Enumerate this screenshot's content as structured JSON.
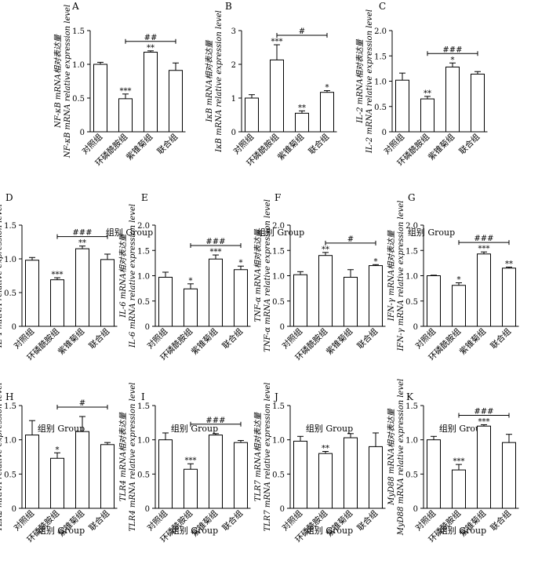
{
  "panels": [
    {
      "letter": "A",
      "ylabel_cn": "NF-κB mRNA相对表达量",
      "ylabel_en": "NF-κB mRNA relative expression level",
      "chart_data": {
        "type": "bar",
        "categories": [
          "对照组",
          "环磷酰胺组",
          "紫锥菊组",
          "联合组"
        ],
        "values": [
          1.0,
          0.49,
          1.18,
          0.91
        ],
        "errors": [
          0.03,
          0.07,
          0.02,
          0.11
        ],
        "ylim": [
          0,
          1.5
        ],
        "yticks": [
          "0",
          "0.5",
          "1.0",
          "1.5"
        ],
        "stars": [
          "",
          "***",
          "**",
          ""
        ],
        "bracket": {
          "from": 1,
          "to": 3,
          "label": "##"
        },
        "xlabel": "组别  Group"
      }
    },
    {
      "letter": "B",
      "ylabel_cn": "IκB mRNA相对表达量",
      "ylabel_en": "IκB mRNA relative expression level",
      "chart_data": {
        "type": "bar",
        "categories": [
          "对照组",
          "环磷酰胺组",
          "紫锥菊组",
          "联合组"
        ],
        "values": [
          1.0,
          2.13,
          0.55,
          1.17
        ],
        "errors": [
          0.1,
          0.45,
          0.07,
          0.05
        ],
        "ylim": [
          0,
          3
        ],
        "yticks": [
          "0",
          "1",
          "2",
          "3"
        ],
        "stars": [
          "",
          "***",
          "**",
          "*"
        ],
        "bracket": {
          "from": 1,
          "to": 3,
          "label": "#"
        },
        "xlabel": "组别  Group"
      }
    },
    {
      "letter": "C",
      "ylabel_cn": "IL-2 mRNA相对表达量",
      "ylabel_en": "IL-2 mRNA relative expression level",
      "chart_data": {
        "type": "bar",
        "categories": [
          "对照组",
          "环磷酰胺组",
          "紫锥菊组",
          "联合组"
        ],
        "values": [
          1.02,
          0.65,
          1.28,
          1.14
        ],
        "errors": [
          0.14,
          0.05,
          0.08,
          0.05
        ],
        "ylim": [
          0,
          2.0
        ],
        "yticks": [
          "0",
          "0.5",
          "1.0",
          "1.5",
          "2.0"
        ],
        "stars": [
          "",
          "**",
          "*",
          ""
        ],
        "bracket": {
          "from": 1,
          "to": 3,
          "label": "###"
        },
        "xlabel": "组别  Group"
      }
    },
    {
      "letter": "D",
      "ylabel_cn": "IL-4 mRNA相对表达量",
      "ylabel_en": "IL-4 mRNA relative expression level",
      "chart_data": {
        "type": "bar",
        "categories": [
          "对照组",
          "环磷酰胺组",
          "紫锥菊组",
          "联合组"
        ],
        "values": [
          0.98,
          0.69,
          1.15,
          0.99
        ],
        "errors": [
          0.04,
          0.03,
          0.04,
          0.08
        ],
        "ylim": [
          0,
          1.5
        ],
        "yticks": [
          "0",
          "0.5",
          "1.0",
          "1.5"
        ],
        "stars": [
          "",
          "***",
          "**",
          ""
        ],
        "bracket": {
          "from": 1,
          "to": 3,
          "label": "###"
        },
        "xlabel": "组别  Group"
      }
    },
    {
      "letter": "E",
      "ylabel_cn": "IL-6 mRNA相对表达量",
      "ylabel_en": "IL-6 mRNA relative expression level",
      "chart_data": {
        "type": "bar",
        "categories": [
          "对照组",
          "环磷酰胺组",
          "紫锥菊组",
          "联合组"
        ],
        "values": [
          0.97,
          0.74,
          1.33,
          1.12
        ],
        "errors": [
          0.1,
          0.1,
          0.08,
          0.07
        ],
        "ylim": [
          0,
          2.0
        ],
        "yticks": [
          "0",
          "0.5",
          "1.0",
          "1.5",
          "2.0"
        ],
        "stars": [
          "",
          "*",
          "***",
          "*"
        ],
        "bracket": {
          "from": 1,
          "to": 3,
          "label": "###"
        },
        "xlabel": "组别  Group"
      }
    },
    {
      "letter": "F",
      "ylabel_cn": "TNF-α mRNA相对表达量",
      "ylabel_en": "TNF-α mRNA relative expression level",
      "chart_data": {
        "type": "bar",
        "categories": [
          "对照组",
          "环磷酰胺组",
          "紫锥菊组",
          "联合组"
        ],
        "values": [
          1.02,
          1.4,
          0.97,
          1.2
        ],
        "errors": [
          0.06,
          0.06,
          0.15,
          0.02
        ],
        "ylim": [
          0,
          2.0
        ],
        "yticks": [
          "0",
          "0.5",
          "1.0",
          "1.5",
          "2.0"
        ],
        "stars": [
          "",
          "**",
          "",
          "*"
        ],
        "bracket": {
          "from": 1,
          "to": 3,
          "label": "#"
        },
        "xlabel": "组别  Group"
      }
    },
    {
      "letter": "G",
      "ylabel_cn": "IFN-γ mRNA相对表达量",
      "ylabel_en": "IFN-γ mRNA relative expression level",
      "chart_data": {
        "type": "bar",
        "categories": [
          "对照组",
          "环磷酰胺组",
          "紫锥菊组",
          "联合组"
        ],
        "values": [
          1.0,
          0.81,
          1.43,
          1.15
        ],
        "errors": [
          0.01,
          0.05,
          0.04,
          0.02
        ],
        "ylim": [
          0,
          2.0
        ],
        "yticks": [
          "0",
          "0.5",
          "1.0",
          "1.5",
          "2.0"
        ],
        "stars": [
          "",
          "*",
          "***",
          "**"
        ],
        "bracket": {
          "from": 1,
          "to": 3,
          "label": "###"
        },
        "xlabel": "组别  Group"
      }
    },
    {
      "letter": "H",
      "ylabel_cn": "TLR2 mRNA相对表达量",
      "ylabel_en": "TLR2 mRNA relative expression level",
      "chart_data": {
        "type": "bar",
        "categories": [
          "对照组",
          "环磷酰胺组",
          "紫锥菊组",
          "联合组"
        ],
        "values": [
          1.07,
          0.73,
          1.12,
          0.93
        ],
        "errors": [
          0.21,
          0.08,
          0.22,
          0.03
        ],
        "ylim": [
          0,
          1.5
        ],
        "yticks": [
          "0",
          "0.5",
          "1.0",
          "1.5"
        ],
        "stars": [
          "",
          "*",
          "",
          ""
        ],
        "bracket": {
          "from": 1,
          "to": 3,
          "label": "#"
        },
        "xlabel": "组别  Group"
      }
    },
    {
      "letter": "I",
      "ylabel_cn": "TLR4 mRNA相对表达量",
      "ylabel_en": "TLR4 mRNA relative expression level",
      "chart_data": {
        "type": "bar",
        "categories": [
          "对照组",
          "环磷酰胺组",
          "紫锥菊组",
          "联合组"
        ],
        "values": [
          1.0,
          0.57,
          1.07,
          0.96
        ],
        "errors": [
          0.1,
          0.08,
          0.02,
          0.03
        ],
        "ylim": [
          0,
          1.5
        ],
        "yticks": [
          "0",
          "0.5",
          "1.0",
          "1.5"
        ],
        "stars": [
          "",
          "***",
          "",
          ""
        ],
        "bracket": {
          "from": 1,
          "to": 3,
          "label": "###"
        },
        "xlabel": "组别  Group"
      }
    },
    {
      "letter": "J",
      "ylabel_cn": "TLR7 mRNA相对表达量",
      "ylabel_en": "TLR7 mRNA relative expression level",
      "chart_data": {
        "type": "bar",
        "categories": [
          "对照组",
          "环磷酰胺组",
          "紫锥菊组",
          "联合组"
        ],
        "values": [
          0.98,
          0.8,
          1.03,
          0.9
        ],
        "errors": [
          0.07,
          0.03,
          0.06,
          0.2
        ],
        "ylim": [
          0,
          1.5
        ],
        "yticks": [
          "0",
          "0.5",
          "1.0",
          "1.5"
        ],
        "stars": [
          "",
          "**",
          "",
          ""
        ],
        "bracket": null,
        "xlabel": "组别  Group"
      }
    },
    {
      "letter": "K",
      "ylabel_cn": "MyD88 mRNA相对表达量",
      "ylabel_en": "MyD88 mRNA relative expression level",
      "chart_data": {
        "type": "bar",
        "categories": [
          "对照组",
          "环磷酰胺组",
          "紫锥菊组",
          "联合组"
        ],
        "values": [
          1.0,
          0.56,
          1.2,
          0.96
        ],
        "errors": [
          0.05,
          0.08,
          0.02,
          0.12
        ],
        "ylim": [
          0,
          1.5
        ],
        "yticks": [
          "0",
          "0.5",
          "1.0",
          "1.5"
        ],
        "stars": [
          "",
          "***",
          "***",
          ""
        ],
        "bracket": {
          "from": 1,
          "to": 3,
          "label": "###"
        },
        "xlabel": "组别  Group"
      }
    }
  ]
}
